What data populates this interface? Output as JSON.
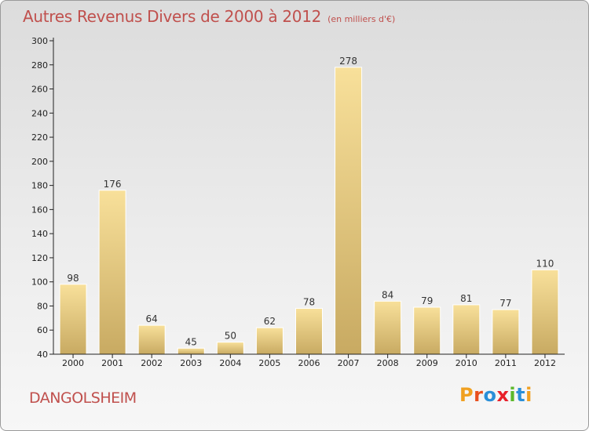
{
  "header": {
    "title": "Autres Revenus Divers de 2000 à 2012",
    "unit": "(en milliers d'€)"
  },
  "footer": {
    "commune": "DANGOLSHEIM",
    "logo": {
      "letters": [
        "P",
        "r",
        "o",
        "x",
        "i",
        "t",
        "i"
      ],
      "colors": [
        "#f0a020",
        "#e8501e",
        "#2a8fd8",
        "#e8202a",
        "#5cb82a",
        "#2a8fd8",
        "#f0a020"
      ]
    }
  },
  "colors": {
    "title": "#c0504d",
    "bar_top": "#f8e09a",
    "bar_bottom": "#c8aa62",
    "bar_edge": "#ffffff",
    "axis": "#222222"
  },
  "chart_data": {
    "type": "bar",
    "categories": [
      "2000",
      "2001",
      "2002",
      "2003",
      "2004",
      "2005",
      "2006",
      "2007",
      "2008",
      "2009",
      "2010",
      "2011",
      "2012"
    ],
    "values": [
      98,
      176,
      64,
      45,
      50,
      62,
      78,
      278,
      84,
      79,
      81,
      77,
      110
    ],
    "ylim": [
      40,
      300
    ],
    "yticks": [
      40,
      60,
      80,
      100,
      120,
      140,
      160,
      180,
      200,
      220,
      240,
      260,
      280,
      300
    ],
    "grid": false,
    "legend": "none"
  }
}
